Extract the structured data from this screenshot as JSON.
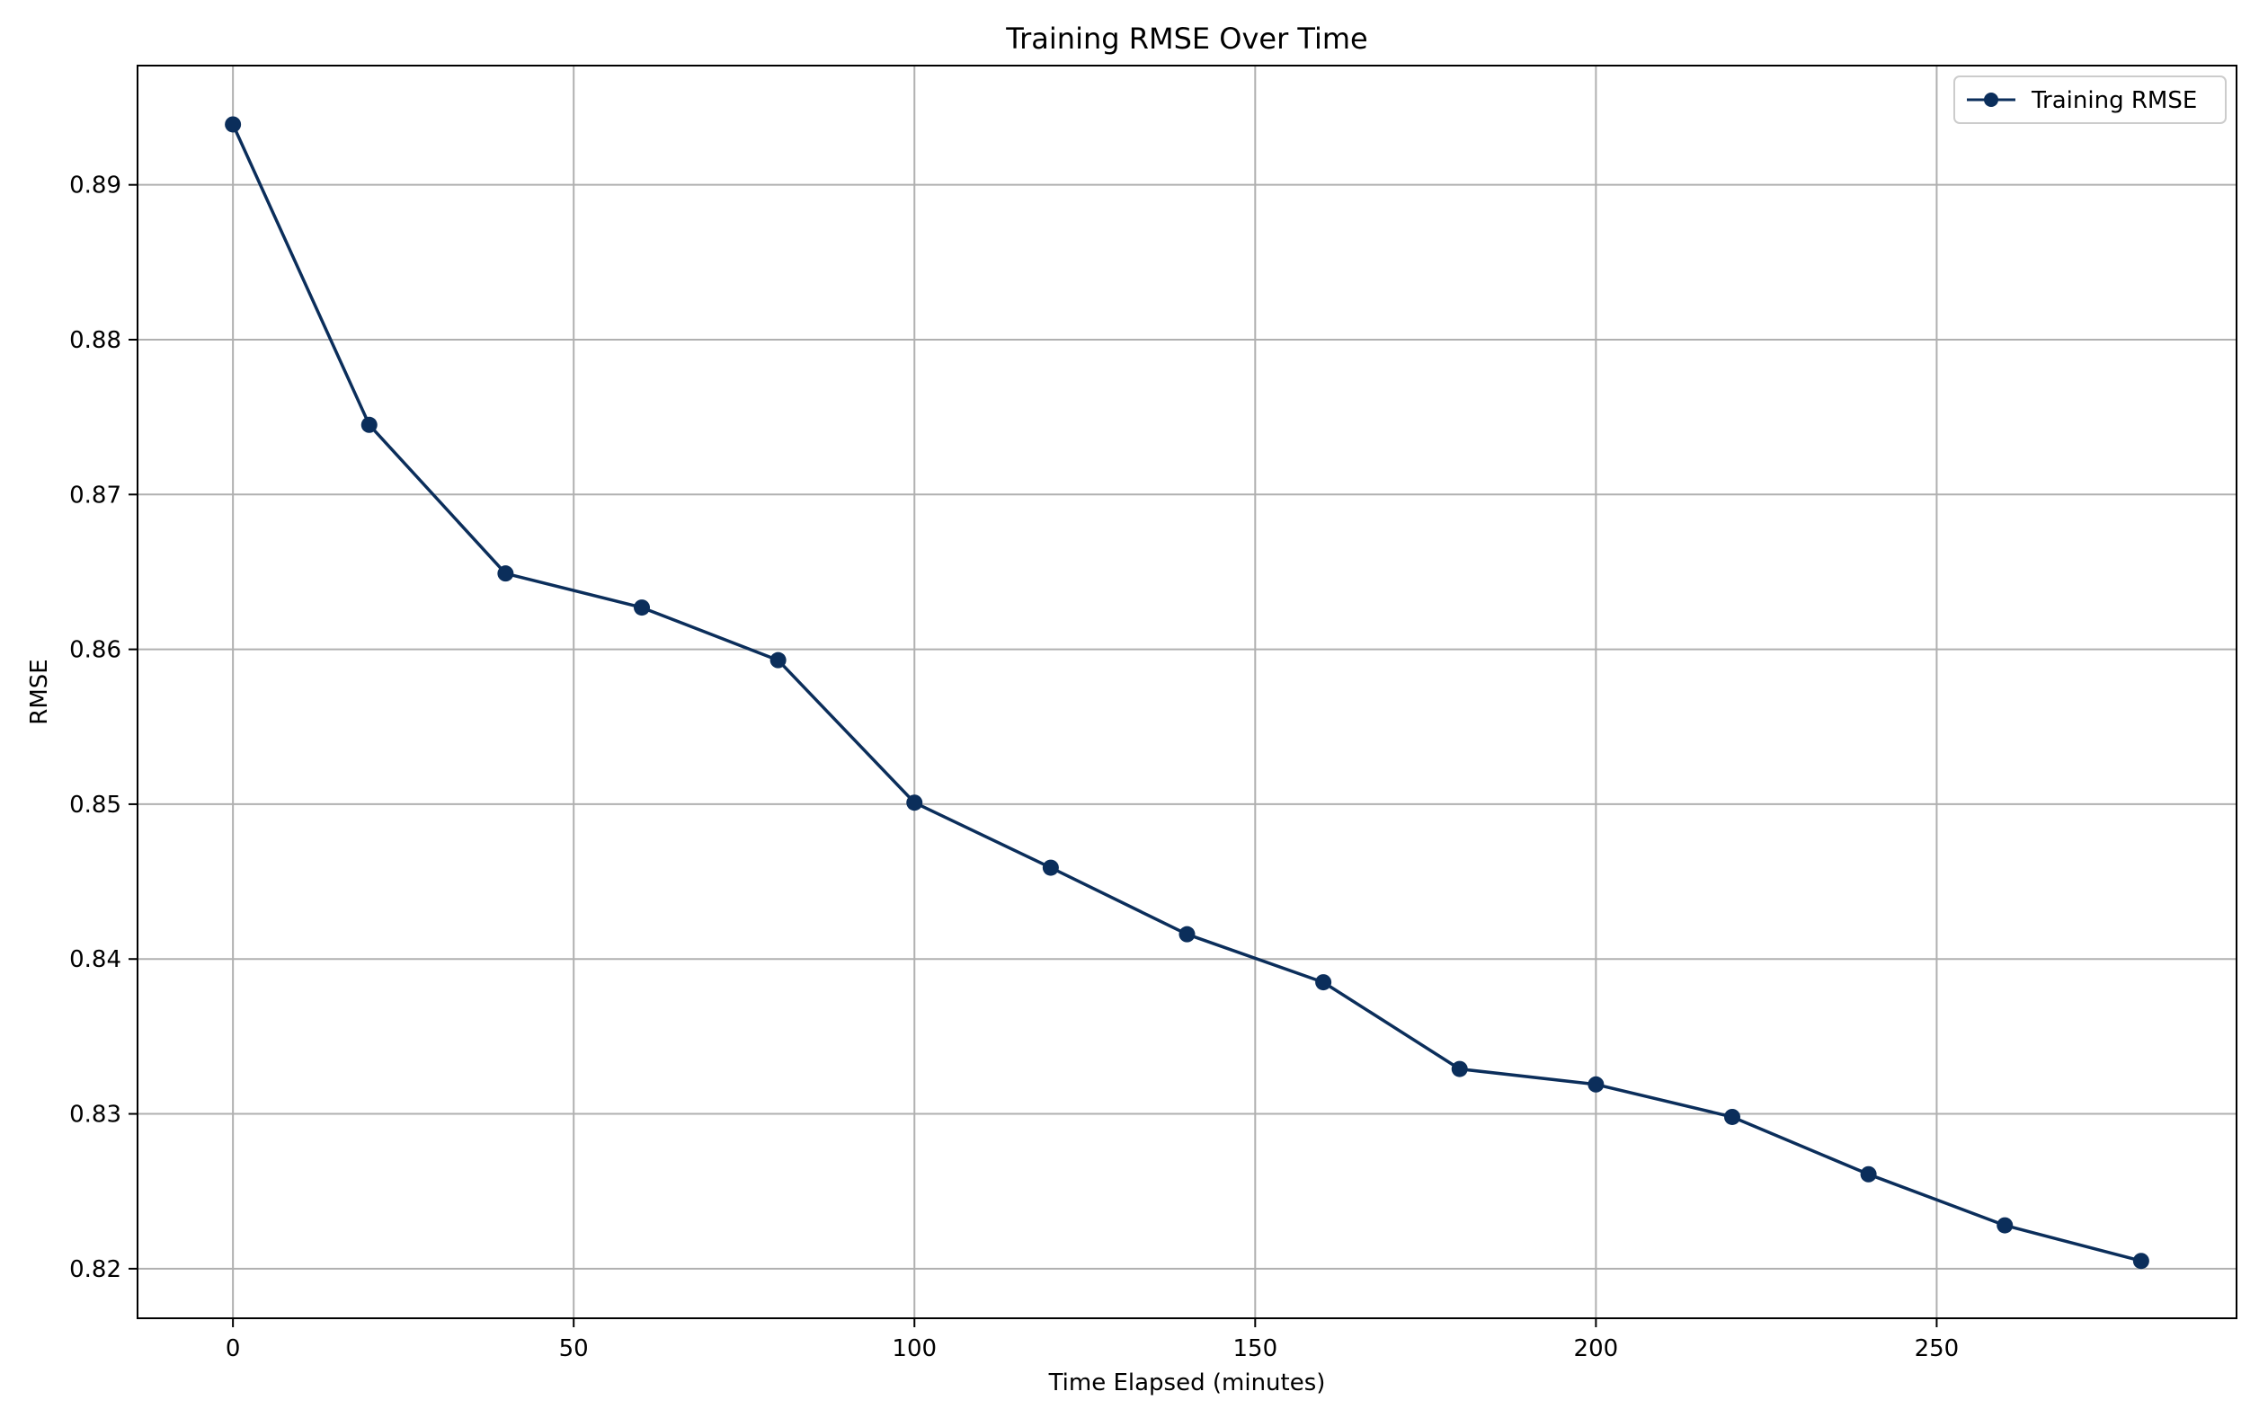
{
  "chart_data": {
    "type": "line",
    "title": "Training RMSE Over Time",
    "xlabel": "Time Elapsed (minutes)",
    "ylabel": "RMSE",
    "xlim": [
      -14,
      294
    ],
    "ylim": [
      0.8168,
      0.8977
    ],
    "x_ticks": [
      0,
      50,
      100,
      150,
      200,
      250
    ],
    "y_ticks": [
      0.82,
      0.83,
      0.84,
      0.85,
      0.86,
      0.87,
      0.88,
      0.89
    ],
    "grid": true,
    "legend": {
      "placement": "top-right"
    },
    "series": [
      {
        "name": "Training RMSE",
        "color": "#0b2e5b",
        "marker": "circle",
        "x": [
          0,
          20,
          40,
          60,
          80,
          100,
          120,
          140,
          160,
          180,
          200,
          220,
          240,
          260,
          280
        ],
        "y": [
          0.8939,
          0.8745,
          0.8649,
          0.8627,
          0.8593,
          0.8501,
          0.8459,
          0.8416,
          0.8385,
          0.8329,
          0.8319,
          0.8298,
          0.8261,
          0.8228,
          0.8205
        ]
      }
    ]
  }
}
